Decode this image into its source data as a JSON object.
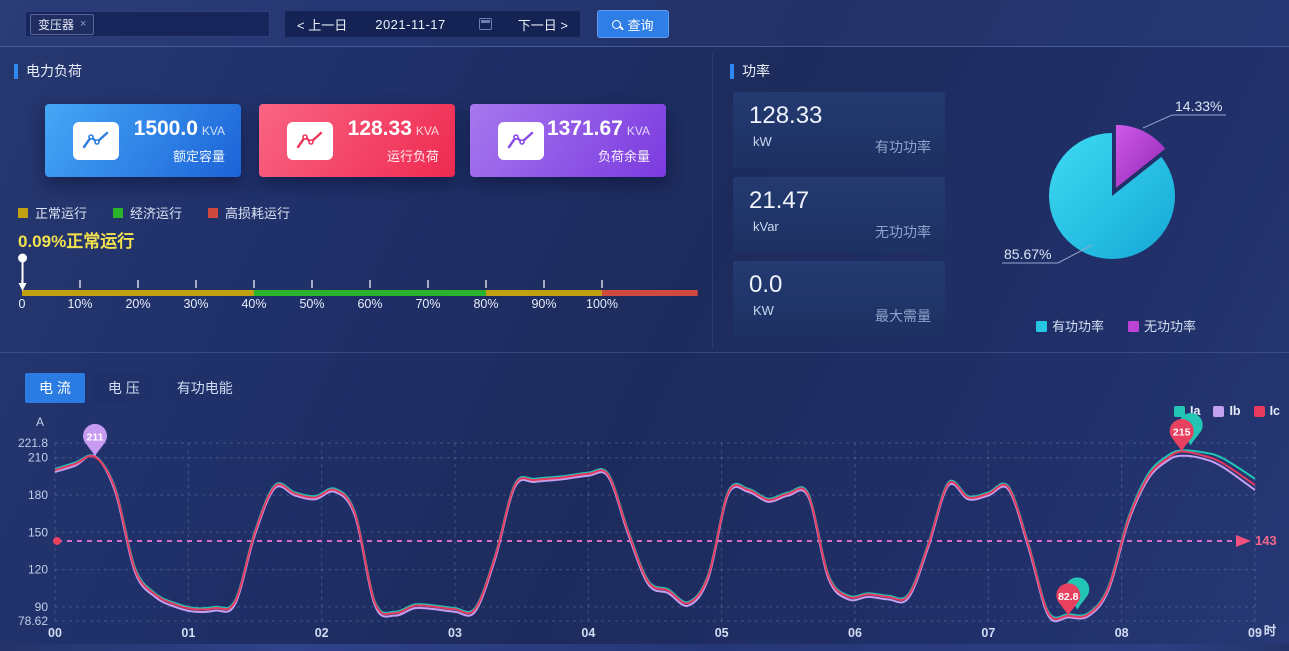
{
  "topbar": {
    "tag": "变压器",
    "tag_close": "×",
    "prev": "< 上一日",
    "date": "2021-11-17",
    "next": "下一日 >",
    "query": "查询"
  },
  "load_panel": {
    "title": "电力负荷",
    "cards": [
      {
        "value": "1500.0",
        "unit": "KVA",
        "label": "额定容量"
      },
      {
        "value": "128.33",
        "unit": "KVA",
        "label": "运行负荷"
      },
      {
        "value": "1371.67",
        "unit": "KVA",
        "label": "负荷余量"
      }
    ],
    "legend": [
      {
        "label": "正常运行",
        "color": "#c2a014"
      },
      {
        "label": "经济运行",
        "color": "#2cb32c"
      },
      {
        "label": "高损耗运行",
        "color": "#ce4a3e"
      }
    ],
    "status_text": "0.09%正常运行"
  },
  "power_panel": {
    "title": "功率",
    "stats": [
      {
        "value": "128.33",
        "unit": "kW",
        "label": "有功功率"
      },
      {
        "value": "21.47",
        "unit": "kVar",
        "label": "无功功率"
      },
      {
        "value": "0.0",
        "unit": "KW",
        "label": "最大需量"
      }
    ]
  },
  "chart_tabs": [
    {
      "label": "电 流",
      "active": true
    },
    {
      "label": "电 压",
      "active": false
    },
    {
      "label": "有功电能",
      "active": false
    }
  ],
  "chart_data": [
    {
      "type": "linear-gauge",
      "pointer_value": 0.09,
      "pointer_label": "0.09%正常运行",
      "segments": [
        {
          "label": "正常运行",
          "color": "#c2a014",
          "from": 0,
          "to": 40
        },
        {
          "label": "经济运行",
          "color": "#2cb32c",
          "from": 40,
          "to": 80
        },
        {
          "label": "正常运行",
          "color": "#c2a014",
          "from": 80,
          "to": 100
        },
        {
          "label": "高损耗运行",
          "color": "#ce4a3e",
          "from": 100,
          "to": 116.5
        }
      ],
      "ticks": [
        "0",
        "10%",
        "20%",
        "30%",
        "40%",
        "50%",
        "60%",
        "70%",
        "80%",
        "90%",
        "100%"
      ]
    },
    {
      "type": "pie",
      "legend_position": "bottom",
      "slices": [
        {
          "label": "有功功率",
          "value": 85.67,
          "pct_label": "85.67%",
          "color": "#27c6e2",
          "offset": false
        },
        {
          "label": "无功功率",
          "value": 14.33,
          "pct_label": "14.33%",
          "color": "#bb44d4",
          "offset": true
        }
      ]
    },
    {
      "type": "line",
      "tab": "电流",
      "y_unit": "A",
      "x_unit": "时",
      "ylim": [
        78.62,
        221.8
      ],
      "xlim": [
        0,
        9
      ],
      "y_ticks": [
        221.8,
        210,
        180,
        150,
        120,
        90,
        78.62
      ],
      "x_ticks": [
        "00",
        "01",
        "02",
        "03",
        "04",
        "05",
        "06",
        "07",
        "08",
        "09"
      ],
      "x": [
        0,
        0.15,
        0.3,
        0.45,
        0.6,
        0.75,
        0.9,
        1.05,
        1.2,
        1.35,
        1.5,
        1.65,
        1.8,
        1.95,
        2.1,
        2.25,
        2.4,
        2.55,
        2.7,
        2.85,
        3,
        3.15,
        3.3,
        3.45,
        3.6,
        3.8,
        4,
        4.15,
        4.3,
        4.45,
        4.6,
        4.75,
        4.9,
        5.05,
        5.2,
        5.35,
        5.5,
        5.65,
        5.8,
        5.95,
        6.1,
        6.25,
        6.4,
        6.55,
        6.7,
        6.85,
        7,
        7.15,
        7.3,
        7.45,
        7.6,
        7.75,
        7.9,
        8.05,
        8.2,
        8.35,
        8.45,
        8.6,
        8.75,
        9
      ],
      "series": [
        {
          "name": "Ia",
          "color": "#22c4b4",
          "values": [
            201,
            206,
            211,
            186,
            121.5,
            101,
            93,
            89,
            90,
            95,
            151,
            188,
            182,
            179,
            185,
            166,
            94,
            86,
            92,
            91,
            89,
            89,
            131,
            189,
            193,
            195,
            198,
            197,
            151,
            111,
            104,
            94,
            116,
            183,
            185,
            177,
            182,
            181,
            116,
            99,
            101,
            99,
            100,
            141,
            190,
            179,
            182,
            187,
            141,
            86,
            84,
            85,
            106,
            161.5,
            197,
            212,
            215.8,
            214.5,
            210,
            193
          ]
        },
        {
          "name": "Ib",
          "color": "#c3a0f0",
          "values": [
            198.5,
            203.5,
            211,
            183,
            118,
            98,
            90,
            86,
            87,
            92,
            148,
            185.5,
            179.5,
            176.5,
            182.5,
            163,
            91,
            83,
            89,
            88,
            86,
            86,
            128,
            186.5,
            190.5,
            192.5,
            195.5,
            194.5,
            148,
            108,
            101,
            91,
            113,
            180.5,
            182.5,
            174.5,
            179.5,
            178.5,
            113,
            96,
            98,
            96,
            97,
            138,
            187.5,
            176.5,
            179.5,
            184.5,
            138,
            83,
            81.5,
            82.5,
            103,
            158,
            193,
            208,
            211.5,
            209.5,
            203,
            184
          ]
        },
        {
          "name": "Ic",
          "color": "#e73a5e",
          "values": [
            200,
            205,
            210.5,
            185,
            120,
            100,
            92,
            88,
            89,
            94,
            150,
            187,
            181,
            178,
            184,
            165,
            93,
            85,
            91,
            90,
            88,
            88,
            130,
            188,
            192,
            194,
            197,
            196,
            150,
            110,
            103,
            93,
            115,
            182,
            184,
            176,
            181,
            180,
            115,
            98,
            100,
            98,
            99,
            140,
            189,
            178,
            181,
            186,
            140,
            85,
            82.8,
            84,
            105,
            160,
            195,
            210,
            215,
            212,
            206,
            188
          ]
        }
      ],
      "average_line": {
        "value": 143,
        "label": "143",
        "color": "#d86fc0"
      },
      "markers": [
        {
          "x": 0.3,
          "y": 211,
          "label": "211",
          "color": "#c89bf2",
          "name": "marker-max-ib"
        },
        {
          "x": 8.45,
          "y": 215,
          "label": "215",
          "color": "#e8415f",
          "shadow_color": "#22c4b4",
          "name": "marker-max-ic"
        },
        {
          "x": 7.6,
          "y": 82.8,
          "label": "82.8",
          "color": "#e8415f",
          "shadow_color": "#22c4b4",
          "name": "marker-min-ic"
        }
      ]
    }
  ]
}
